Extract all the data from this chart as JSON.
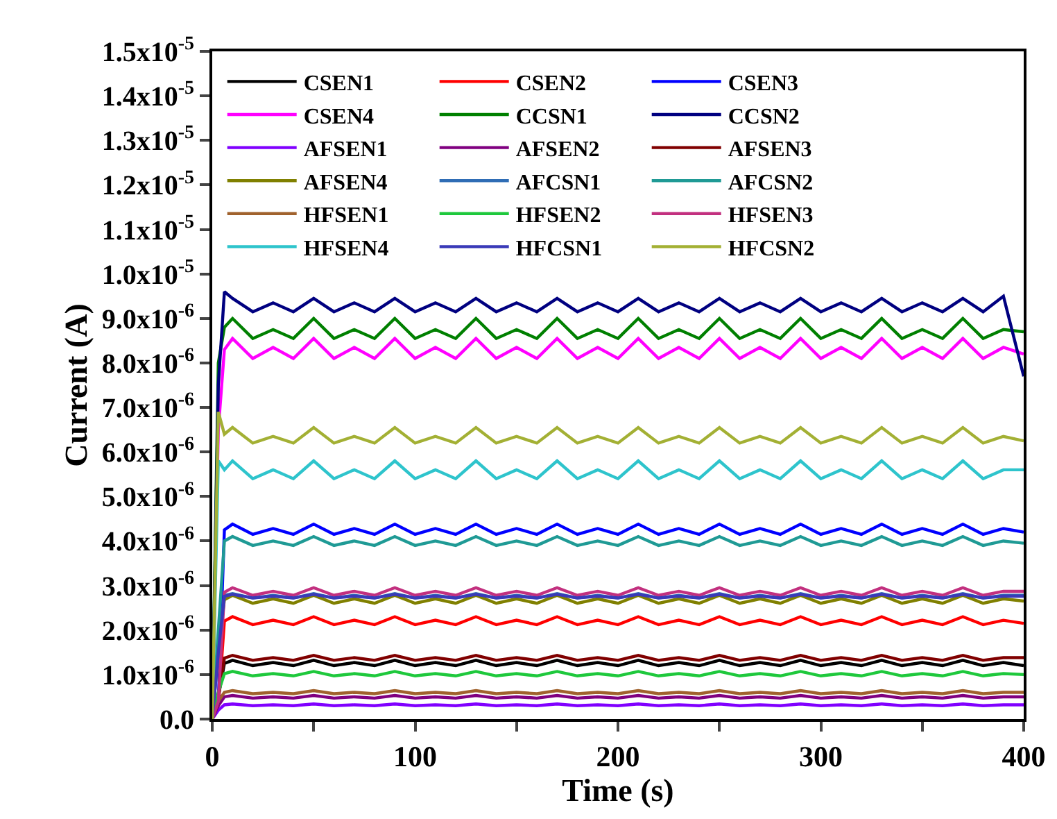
{
  "chart_data": {
    "type": "line",
    "xlabel": "Time (s)",
    "ylabel": "Current (A)",
    "xlim": [
      0,
      400
    ],
    "ylim": [
      0,
      1.5e-05
    ],
    "xticks": [
      0,
      {
        "value": 50,
        "label": null
      },
      100,
      {
        "value": 150,
        "label": null
      },
      200,
      {
        "value": 250,
        "label": null
      },
      300,
      {
        "value": 350,
        "label": null
      },
      400
    ],
    "yticks": [
      {
        "value": 0,
        "label": "0.0"
      },
      {
        "value": 1e-06,
        "label": "1.0x10$^{-6}$"
      },
      {
        "value": 2e-06,
        "label": "2.0x10$^{-6}$"
      },
      {
        "value": 3e-06,
        "label": "3.0x10$^{-6}$"
      },
      {
        "value": 4e-06,
        "label": "4.0x10$^{-6}$"
      },
      {
        "value": 5e-06,
        "label": "5.0x10$^{-6}$"
      },
      {
        "value": 6e-06,
        "label": "6.0x10$^{-6}$"
      },
      {
        "value": 7e-06,
        "label": "7.0x10$^{-6}$"
      },
      {
        "value": 8e-06,
        "label": "8.0x10$^{-6}$"
      },
      {
        "value": 9e-06,
        "label": "9.0x10$^{-6}$"
      },
      {
        "value": 1e-05,
        "label": "1.0x10$^{-5}$"
      },
      {
        "value": 1.1e-05,
        "label": "1.1x10$^{-5}$"
      },
      {
        "value": 1.2e-05,
        "label": "1.2x10$^{-5}$"
      },
      {
        "value": 1.3e-05,
        "label": "1.3x10$^{-5}$"
      },
      {
        "value": 1.4e-05,
        "label": "1.4x10$^{-5}$"
      },
      {
        "value": 1.5e-05,
        "label": "1.5x10$^{-5}$"
      }
    ],
    "x": [
      0,
      3,
      6,
      10,
      20,
      30,
      40,
      50,
      60,
      70,
      80,
      90,
      100,
      110,
      120,
      130,
      140,
      150,
      160,
      170,
      180,
      190,
      200,
      210,
      220,
      230,
      240,
      250,
      260,
      270,
      280,
      290,
      300,
      310,
      320,
      330,
      340,
      350,
      360,
      370,
      380,
      390,
      400
    ],
    "grid": false,
    "legend": "top",
    "marker": "none",
    "line_style": "solid",
    "series": [
      {
        "name": "CSEN1",
        "color": "#000000",
        "values": [
          0,
          5e-07,
          1.25e-06,
          1.32e-06,
          1.2e-06,
          1.27e-06,
          1.2e-06,
          1.32e-06,
          1.2e-06,
          1.27e-06,
          1.2e-06,
          1.32e-06,
          1.2e-06,
          1.27e-06,
          1.2e-06,
          1.32e-06,
          1.2e-06,
          1.27e-06,
          1.2e-06,
          1.32e-06,
          1.2e-06,
          1.27e-06,
          1.2e-06,
          1.32e-06,
          1.2e-06,
          1.27e-06,
          1.2e-06,
          1.32e-06,
          1.2e-06,
          1.27e-06,
          1.2e-06,
          1.32e-06,
          1.2e-06,
          1.27e-06,
          1.2e-06,
          1.32e-06,
          1.2e-06,
          1.27e-06,
          1.2e-06,
          1.32e-06,
          1.2e-06,
          1.27e-06,
          1.2e-06
        ]
      },
      {
        "name": "CSEN2",
        "color": "#ff0000",
        "values": [
          0,
          3e-07,
          2.2e-06,
          2.3e-06,
          2.12e-06,
          2.22e-06,
          2.12e-06,
          2.3e-06,
          2.12e-06,
          2.22e-06,
          2.12e-06,
          2.3e-06,
          2.12e-06,
          2.22e-06,
          2.12e-06,
          2.3e-06,
          2.12e-06,
          2.22e-06,
          2.12e-06,
          2.3e-06,
          2.12e-06,
          2.22e-06,
          2.12e-06,
          2.3e-06,
          2.12e-06,
          2.22e-06,
          2.12e-06,
          2.3e-06,
          2.12e-06,
          2.22e-06,
          2.12e-06,
          2.3e-06,
          2.12e-06,
          2.22e-06,
          2.12e-06,
          2.3e-06,
          2.12e-06,
          2.22e-06,
          2.12e-06,
          2.3e-06,
          2.12e-06,
          2.22e-06,
          2.15e-06
        ]
      },
      {
        "name": "CSEN3",
        "color": "#0000ff",
        "values": [
          0,
          4e-07,
          4.25e-06,
          4.38e-06,
          4.15e-06,
          4.28e-06,
          4.15e-06,
          4.38e-06,
          4.15e-06,
          4.28e-06,
          4.15e-06,
          4.38e-06,
          4.15e-06,
          4.28e-06,
          4.15e-06,
          4.38e-06,
          4.15e-06,
          4.28e-06,
          4.15e-06,
          4.38e-06,
          4.15e-06,
          4.28e-06,
          4.15e-06,
          4.38e-06,
          4.15e-06,
          4.28e-06,
          4.15e-06,
          4.38e-06,
          4.15e-06,
          4.28e-06,
          4.15e-06,
          4.38e-06,
          4.15e-06,
          4.28e-06,
          4.15e-06,
          4.38e-06,
          4.15e-06,
          4.28e-06,
          4.15e-06,
          4.38e-06,
          4.15e-06,
          4.28e-06,
          4.2e-06
        ]
      },
      {
        "name": "CSEN4",
        "color": "#ff00ff",
        "values": [
          0,
          6.5e-06,
          8.3e-06,
          8.55e-06,
          8.1e-06,
          8.35e-06,
          8.1e-06,
          8.55e-06,
          8.1e-06,
          8.35e-06,
          8.1e-06,
          8.55e-06,
          8.1e-06,
          8.35e-06,
          8.1e-06,
          8.55e-06,
          8.1e-06,
          8.35e-06,
          8.1e-06,
          8.55e-06,
          8.1e-06,
          8.35e-06,
          8.1e-06,
          8.55e-06,
          8.1e-06,
          8.35e-06,
          8.1e-06,
          8.55e-06,
          8.1e-06,
          8.35e-06,
          8.1e-06,
          8.55e-06,
          8.1e-06,
          8.35e-06,
          8.1e-06,
          8.55e-06,
          8.1e-06,
          8.35e-06,
          8.1e-06,
          8.55e-06,
          8.1e-06,
          8.35e-06,
          8.2e-06
        ]
      },
      {
        "name": "CCSN1",
        "color": "#008000",
        "values": [
          0,
          8e-06,
          8.8e-06,
          9e-06,
          8.55e-06,
          8.75e-06,
          8.55e-06,
          9e-06,
          8.55e-06,
          8.75e-06,
          8.55e-06,
          9e-06,
          8.55e-06,
          8.75e-06,
          8.55e-06,
          9e-06,
          8.55e-06,
          8.75e-06,
          8.55e-06,
          9e-06,
          8.55e-06,
          8.75e-06,
          8.55e-06,
          9e-06,
          8.55e-06,
          8.75e-06,
          8.55e-06,
          9e-06,
          8.55e-06,
          8.75e-06,
          8.55e-06,
          9e-06,
          8.55e-06,
          8.75e-06,
          8.55e-06,
          9e-06,
          8.55e-06,
          8.75e-06,
          8.55e-06,
          9e-06,
          8.55e-06,
          8.75e-06,
          8.7e-06
        ]
      },
      {
        "name": "CCSN2",
        "color": "#000080",
        "values": [
          0,
          7.5e-06,
          9.6e-06,
          9.45e-06,
          9.15e-06,
          9.35e-06,
          9.15e-06,
          9.45e-06,
          9.15e-06,
          9.35e-06,
          9.15e-06,
          9.45e-06,
          9.15e-06,
          9.35e-06,
          9.15e-06,
          9.45e-06,
          9.15e-06,
          9.35e-06,
          9.15e-06,
          9.45e-06,
          9.15e-06,
          9.35e-06,
          9.15e-06,
          9.45e-06,
          9.15e-06,
          9.35e-06,
          9.15e-06,
          9.45e-06,
          9.15e-06,
          9.35e-06,
          9.15e-06,
          9.45e-06,
          9.15e-06,
          9.35e-06,
          9.15e-06,
          9.45e-06,
          9.15e-06,
          9.35e-06,
          9.15e-06,
          9.45e-06,
          9.15e-06,
          9.5e-06,
          7.7e-06
        ]
      },
      {
        "name": "AFSEN1",
        "color": "#8000ff",
        "values": [
          0,
          2e-07,
          3.2e-07,
          3.4e-07,
          3e-07,
          3.2e-07,
          3e-07,
          3.4e-07,
          3e-07,
          3.2e-07,
          3e-07,
          3.4e-07,
          3e-07,
          3.2e-07,
          3e-07,
          3.4e-07,
          3e-07,
          3.2e-07,
          3e-07,
          3.4e-07,
          3e-07,
          3.2e-07,
          3e-07,
          3.4e-07,
          3e-07,
          3.2e-07,
          3e-07,
          3.4e-07,
          3e-07,
          3.2e-07,
          3e-07,
          3.4e-07,
          3e-07,
          3.2e-07,
          3e-07,
          3.4e-07,
          3e-07,
          3.2e-07,
          3e-07,
          3.4e-07,
          3e-07,
          3.2e-07,
          3.2e-07
        ]
      },
      {
        "name": "AFSEN2",
        "color": "#800080",
        "values": [
          0,
          3e-07,
          5e-07,
          5.3e-07,
          4.7e-07,
          5e-07,
          4.7e-07,
          5.3e-07,
          4.7e-07,
          5e-07,
          4.7e-07,
          5.3e-07,
          4.7e-07,
          5e-07,
          4.7e-07,
          5.3e-07,
          4.7e-07,
          5e-07,
          4.7e-07,
          5.3e-07,
          4.7e-07,
          5e-07,
          4.7e-07,
          5.3e-07,
          4.7e-07,
          5e-07,
          4.7e-07,
          5.3e-07,
          4.7e-07,
          5e-07,
          4.7e-07,
          5.3e-07,
          4.7e-07,
          5e-07,
          4.7e-07,
          5.3e-07,
          4.7e-07,
          5e-07,
          4.7e-07,
          5.3e-07,
          4.7e-07,
          5e-07,
          5e-07
        ]
      },
      {
        "name": "AFSEN3",
        "color": "#800000",
        "values": [
          0,
          5e-07,
          1.37e-06,
          1.43e-06,
          1.32e-06,
          1.38e-06,
          1.32e-06,
          1.43e-06,
          1.32e-06,
          1.38e-06,
          1.32e-06,
          1.43e-06,
          1.32e-06,
          1.38e-06,
          1.32e-06,
          1.43e-06,
          1.32e-06,
          1.38e-06,
          1.32e-06,
          1.43e-06,
          1.32e-06,
          1.38e-06,
          1.32e-06,
          1.43e-06,
          1.32e-06,
          1.38e-06,
          1.32e-06,
          1.43e-06,
          1.32e-06,
          1.38e-06,
          1.32e-06,
          1.43e-06,
          1.32e-06,
          1.38e-06,
          1.32e-06,
          1.43e-06,
          1.32e-06,
          1.38e-06,
          1.32e-06,
          1.43e-06,
          1.32e-06,
          1.38e-06,
          1.38e-06
        ]
      },
      {
        "name": "AFSEN4",
        "color": "#808000",
        "values": [
          0,
          1.5e-06,
          2.68e-06,
          2.78e-06,
          2.6e-06,
          2.7e-06,
          2.6e-06,
          2.78e-06,
          2.6e-06,
          2.7e-06,
          2.6e-06,
          2.78e-06,
          2.6e-06,
          2.7e-06,
          2.6e-06,
          2.78e-06,
          2.6e-06,
          2.7e-06,
          2.6e-06,
          2.78e-06,
          2.6e-06,
          2.7e-06,
          2.6e-06,
          2.78e-06,
          2.6e-06,
          2.7e-06,
          2.6e-06,
          2.78e-06,
          2.6e-06,
          2.7e-06,
          2.6e-06,
          2.78e-06,
          2.6e-06,
          2.7e-06,
          2.6e-06,
          2.78e-06,
          2.6e-06,
          2.7e-06,
          2.6e-06,
          2.78e-06,
          2.6e-06,
          2.7e-06,
          2.65e-06
        ]
      },
      {
        "name": "AFCSN1",
        "color": "#2f6db5",
        "values": [
          0,
          1.5e-06,
          2.78e-06,
          2.82e-06,
          2.72e-06,
          2.78e-06,
          2.72e-06,
          2.82e-06,
          2.72e-06,
          2.78e-06,
          2.72e-06,
          2.82e-06,
          2.72e-06,
          2.78e-06,
          2.72e-06,
          2.82e-06,
          2.72e-06,
          2.78e-06,
          2.72e-06,
          2.82e-06,
          2.72e-06,
          2.78e-06,
          2.72e-06,
          2.82e-06,
          2.72e-06,
          2.78e-06,
          2.72e-06,
          2.82e-06,
          2.72e-06,
          2.78e-06,
          2.72e-06,
          2.82e-06,
          2.72e-06,
          2.78e-06,
          2.72e-06,
          2.82e-06,
          2.72e-06,
          2.78e-06,
          2.72e-06,
          2.82e-06,
          2.72e-06,
          2.78e-06,
          2.78e-06
        ]
      },
      {
        "name": "AFCSN2",
        "color": "#1f9a95",
        "values": [
          0,
          2e-06,
          4e-06,
          4.1e-06,
          3.9e-06,
          4e-06,
          3.9e-06,
          4.1e-06,
          3.9e-06,
          4e-06,
          3.9e-06,
          4.1e-06,
          3.9e-06,
          4e-06,
          3.9e-06,
          4.1e-06,
          3.9e-06,
          4e-06,
          3.9e-06,
          4.1e-06,
          3.9e-06,
          4e-06,
          3.9e-06,
          4.1e-06,
          3.9e-06,
          4e-06,
          3.9e-06,
          4.1e-06,
          3.9e-06,
          4e-06,
          3.9e-06,
          4.1e-06,
          3.9e-06,
          4e-06,
          3.9e-06,
          4.1e-06,
          3.9e-06,
          4e-06,
          3.9e-06,
          4.1e-06,
          3.9e-06,
          4e-06,
          3.95e-06
        ]
      },
      {
        "name": "HFSEN1",
        "color": "#a0622d",
        "values": [
          0,
          4e-07,
          6e-07,
          6.4e-07,
          5.7e-07,
          6e-07,
          5.7e-07,
          6.4e-07,
          5.7e-07,
          6e-07,
          5.7e-07,
          6.4e-07,
          5.7e-07,
          6e-07,
          5.7e-07,
          6.4e-07,
          5.7e-07,
          6e-07,
          5.7e-07,
          6.4e-07,
          5.7e-07,
          6e-07,
          5.7e-07,
          6.4e-07,
          5.7e-07,
          6e-07,
          5.7e-07,
          6.4e-07,
          5.7e-07,
          6e-07,
          5.7e-07,
          6.4e-07,
          5.7e-07,
          6e-07,
          5.7e-07,
          6.4e-07,
          5.7e-07,
          6e-07,
          5.7e-07,
          6.4e-07,
          5.7e-07,
          6e-07,
          6e-07
        ]
      },
      {
        "name": "HFSEN2",
        "color": "#1ec83c",
        "values": [
          0,
          6e-07,
          1.02e-06,
          1.07e-06,
          9.7e-07,
          1.02e-06,
          9.7e-07,
          1.07e-06,
          9.7e-07,
          1.02e-06,
          9.7e-07,
          1.07e-06,
          9.7e-07,
          1.02e-06,
          9.7e-07,
          1.07e-06,
          9.7e-07,
          1.02e-06,
          9.7e-07,
          1.07e-06,
          9.7e-07,
          1.02e-06,
          9.7e-07,
          1.07e-06,
          9.7e-07,
          1.02e-06,
          9.7e-07,
          1.07e-06,
          9.7e-07,
          1.02e-06,
          9.7e-07,
          1.07e-06,
          9.7e-07,
          1.02e-06,
          9.7e-07,
          1.07e-06,
          9.7e-07,
          1.02e-06,
          9.7e-07,
          1.07e-06,
          9.7e-07,
          1.02e-06,
          1e-06
        ]
      },
      {
        "name": "HFSEN3",
        "color": "#c2307f",
        "values": [
          0,
          4e-07,
          2.85e-06,
          2.95e-06,
          2.78e-06,
          2.87e-06,
          2.78e-06,
          2.95e-06,
          2.78e-06,
          2.87e-06,
          2.78e-06,
          2.95e-06,
          2.78e-06,
          2.87e-06,
          2.78e-06,
          2.95e-06,
          2.78e-06,
          2.87e-06,
          2.78e-06,
          2.95e-06,
          2.78e-06,
          2.87e-06,
          2.78e-06,
          2.95e-06,
          2.78e-06,
          2.87e-06,
          2.78e-06,
          2.95e-06,
          2.78e-06,
          2.87e-06,
          2.78e-06,
          2.95e-06,
          2.78e-06,
          2.87e-06,
          2.78e-06,
          2.95e-06,
          2.78e-06,
          2.87e-06,
          2.78e-06,
          2.95e-06,
          2.78e-06,
          2.87e-06,
          2.87e-06
        ]
      },
      {
        "name": "HFSEN4",
        "color": "#2ec4cc",
        "values": [
          0,
          5.8e-06,
          5.6e-06,
          5.8e-06,
          5.4e-06,
          5.6e-06,
          5.4e-06,
          5.8e-06,
          5.4e-06,
          5.6e-06,
          5.4e-06,
          5.8e-06,
          5.4e-06,
          5.6e-06,
          5.4e-06,
          5.8e-06,
          5.4e-06,
          5.6e-06,
          5.4e-06,
          5.8e-06,
          5.4e-06,
          5.6e-06,
          5.4e-06,
          5.8e-06,
          5.4e-06,
          5.6e-06,
          5.4e-06,
          5.8e-06,
          5.4e-06,
          5.6e-06,
          5.4e-06,
          5.8e-06,
          5.4e-06,
          5.6e-06,
          5.4e-06,
          5.8e-06,
          5.4e-06,
          5.6e-06,
          5.4e-06,
          5.8e-06,
          5.4e-06,
          5.6e-06,
          5.6e-06
        ]
      },
      {
        "name": "HFCSN1",
        "color": "#3a3ab8",
        "values": [
          0,
          1.5e-06,
          2.76e-06,
          2.8e-06,
          2.72e-06,
          2.76e-06,
          2.72e-06,
          2.8e-06,
          2.72e-06,
          2.76e-06,
          2.72e-06,
          2.8e-06,
          2.72e-06,
          2.76e-06,
          2.72e-06,
          2.8e-06,
          2.72e-06,
          2.76e-06,
          2.72e-06,
          2.8e-06,
          2.72e-06,
          2.76e-06,
          2.72e-06,
          2.8e-06,
          2.72e-06,
          2.76e-06,
          2.72e-06,
          2.8e-06,
          2.72e-06,
          2.76e-06,
          2.72e-06,
          2.8e-06,
          2.72e-06,
          2.76e-06,
          2.72e-06,
          2.8e-06,
          2.72e-06,
          2.76e-06,
          2.72e-06,
          2.8e-06,
          2.72e-06,
          2.76e-06,
          2.76e-06
        ]
      },
      {
        "name": "HFCSN2",
        "color": "#a3b034",
        "values": [
          0,
          6.9e-06,
          6.4e-06,
          6.55e-06,
          6.2e-06,
          6.35e-06,
          6.2e-06,
          6.55e-06,
          6.2e-06,
          6.35e-06,
          6.2e-06,
          6.55e-06,
          6.2e-06,
          6.35e-06,
          6.2e-06,
          6.55e-06,
          6.2e-06,
          6.35e-06,
          6.2e-06,
          6.55e-06,
          6.2e-06,
          6.35e-06,
          6.2e-06,
          6.55e-06,
          6.2e-06,
          6.35e-06,
          6.2e-06,
          6.55e-06,
          6.2e-06,
          6.35e-06,
          6.2e-06,
          6.55e-06,
          6.2e-06,
          6.35e-06,
          6.2e-06,
          6.55e-06,
          6.2e-06,
          6.35e-06,
          6.2e-06,
          6.55e-06,
          6.2e-06,
          6.35e-06,
          6.25e-06
        ]
      }
    ]
  }
}
